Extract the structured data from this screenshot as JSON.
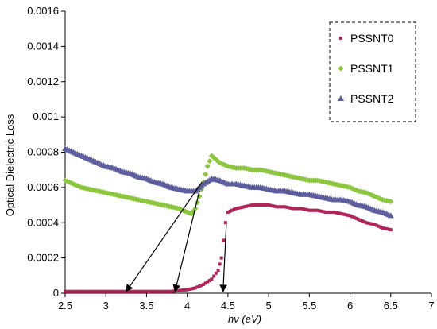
{
  "chart_data": {
    "type": "scatter",
    "xlabel": "hν (eV)",
    "ylabel": "Optical Dielectric Loss",
    "xlim": [
      2.5,
      7
    ],
    "ylim": [
      0,
      0.0016
    ],
    "xticks": [
      "2.5",
      "3",
      "3.5",
      "4",
      "4.5",
      "5",
      "5.5",
      "6",
      "6.5",
      "7"
    ],
    "yticks": [
      "0",
      "0.0002",
      "0.0004",
      "0.0006",
      "0.0008",
      "0.001",
      "0.0012",
      "0.0014",
      "0.0016"
    ],
    "grid": false,
    "legend_position": "top-right",
    "series": [
      {
        "name": "PSSNT0",
        "marker": "square",
        "color": "#b0245a",
        "points": [
          [
            2.5,
            1e-05
          ],
          [
            2.6,
            1e-05
          ],
          [
            2.7,
            1e-05
          ],
          [
            2.8,
            1e-05
          ],
          [
            2.9,
            1e-05
          ],
          [
            3.0,
            1e-05
          ],
          [
            3.1,
            1e-05
          ],
          [
            3.2,
            1e-05
          ],
          [
            3.3,
            1e-05
          ],
          [
            3.4,
            1e-05
          ],
          [
            3.5,
            1e-05
          ],
          [
            3.6,
            1e-05
          ],
          [
            3.7,
            1e-05
          ],
          [
            3.8,
            1e-05
          ],
          [
            3.9,
            1.5e-05
          ],
          [
            4.0,
            2e-05
          ],
          [
            4.1,
            3e-05
          ],
          [
            4.2,
            5e-05
          ],
          [
            4.3,
            8e-05
          ],
          [
            4.38,
            0.00013
          ],
          [
            4.42,
            0.0002
          ],
          [
            4.45,
            0.0003
          ],
          [
            4.47,
            0.0004
          ],
          [
            4.5,
            0.00046
          ],
          [
            4.6,
            0.00048
          ],
          [
            4.7,
            0.00049
          ],
          [
            4.8,
            0.0005
          ],
          [
            4.9,
            0.0005
          ],
          [
            5.0,
            0.0005
          ],
          [
            5.1,
            0.00049
          ],
          [
            5.2,
            0.00049
          ],
          [
            5.3,
            0.00048
          ],
          [
            5.4,
            0.00048
          ],
          [
            5.5,
            0.00047
          ],
          [
            5.6,
            0.00047
          ],
          [
            5.7,
            0.00046
          ],
          [
            5.8,
            0.00046
          ],
          [
            5.9,
            0.00045
          ],
          [
            6.0,
            0.00044
          ],
          [
            6.1,
            0.00042
          ],
          [
            6.2,
            0.0004
          ],
          [
            6.3,
            0.00039
          ],
          [
            6.4,
            0.00037
          ],
          [
            6.5,
            0.00036
          ]
        ]
      },
      {
        "name": "PSSNT1",
        "marker": "diamond",
        "color": "#8cc63f",
        "points": [
          [
            2.5,
            0.00064
          ],
          [
            2.6,
            0.00062
          ],
          [
            2.7,
            0.0006
          ],
          [
            2.8,
            0.00059
          ],
          [
            2.9,
            0.00058
          ],
          [
            3.0,
            0.00057
          ],
          [
            3.1,
            0.00056
          ],
          [
            3.2,
            0.00055
          ],
          [
            3.3,
            0.00054
          ],
          [
            3.4,
            0.00053
          ],
          [
            3.5,
            0.00052
          ],
          [
            3.6,
            0.00051
          ],
          [
            3.7,
            0.0005
          ],
          [
            3.8,
            0.00049
          ],
          [
            3.9,
            0.00048
          ],
          [
            4.0,
            0.00046
          ],
          [
            4.05,
            0.00045
          ],
          [
            4.1,
            0.00048
          ],
          [
            4.15,
            0.00055
          ],
          [
            4.2,
            0.00063
          ],
          [
            4.25,
            0.00072
          ],
          [
            4.3,
            0.00078
          ],
          [
            4.4,
            0.00074
          ],
          [
            4.5,
            0.00072
          ],
          [
            4.6,
            0.00071
          ],
          [
            4.7,
            0.00071
          ],
          [
            4.8,
            0.0007
          ],
          [
            4.9,
            0.0007
          ],
          [
            5.0,
            0.00069
          ],
          [
            5.1,
            0.00068
          ],
          [
            5.2,
            0.00067
          ],
          [
            5.3,
            0.00066
          ],
          [
            5.4,
            0.00065
          ],
          [
            5.5,
            0.00064
          ],
          [
            5.6,
            0.00064
          ],
          [
            5.7,
            0.00063
          ],
          [
            5.8,
            0.00062
          ],
          [
            5.9,
            0.00061
          ],
          [
            6.0,
            0.0006
          ],
          [
            6.1,
            0.00058
          ],
          [
            6.2,
            0.00057
          ],
          [
            6.3,
            0.00055
          ],
          [
            6.4,
            0.00053
          ],
          [
            6.5,
            0.00052
          ]
        ]
      },
      {
        "name": "PSSNT2",
        "marker": "triangle",
        "color": "#5e5e9e",
        "points": [
          [
            2.5,
            0.00082
          ],
          [
            2.6,
            0.0008
          ],
          [
            2.7,
            0.00078
          ],
          [
            2.8,
            0.00076
          ],
          [
            2.9,
            0.00074
          ],
          [
            3.0,
            0.00072
          ],
          [
            3.1,
            0.00071
          ],
          [
            3.2,
            0.00069
          ],
          [
            3.3,
            0.00068
          ],
          [
            3.4,
            0.00066
          ],
          [
            3.5,
            0.00065
          ],
          [
            3.6,
            0.00063
          ],
          [
            3.7,
            0.00062
          ],
          [
            3.8,
            0.0006
          ],
          [
            3.9,
            0.00059
          ],
          [
            4.0,
            0.00058
          ],
          [
            4.1,
            0.00058
          ],
          [
            4.2,
            0.00062
          ],
          [
            4.3,
            0.00065
          ],
          [
            4.4,
            0.00064
          ],
          [
            4.5,
            0.00062
          ],
          [
            4.6,
            0.00062
          ],
          [
            4.7,
            0.00061
          ],
          [
            4.8,
            0.0006
          ],
          [
            4.9,
            0.0006
          ],
          [
            5.0,
            0.00059
          ],
          [
            5.1,
            0.00058
          ],
          [
            5.2,
            0.00058
          ],
          [
            5.3,
            0.00057
          ],
          [
            5.4,
            0.00056
          ],
          [
            5.5,
            0.00056
          ],
          [
            5.6,
            0.00055
          ],
          [
            5.7,
            0.00054
          ],
          [
            5.8,
            0.00053
          ],
          [
            5.9,
            0.00053
          ],
          [
            6.0,
            0.00052
          ],
          [
            6.1,
            0.0005
          ],
          [
            6.2,
            0.00049
          ],
          [
            6.3,
            0.00047
          ],
          [
            6.4,
            0.00046
          ],
          [
            6.5,
            0.00044
          ]
        ]
      }
    ],
    "annotations": [
      {
        "type": "arrow",
        "from": [
          4.18,
          0.00063
        ],
        "to": [
          3.25,
          1e-05
        ]
      },
      {
        "type": "arrow",
        "from": [
          4.15,
          0.00058
        ],
        "to": [
          3.85,
          1e-05
        ]
      },
      {
        "type": "arrow",
        "from": [
          4.48,
          0.00039
        ],
        "to": [
          4.44,
          1e-05
        ]
      }
    ]
  }
}
